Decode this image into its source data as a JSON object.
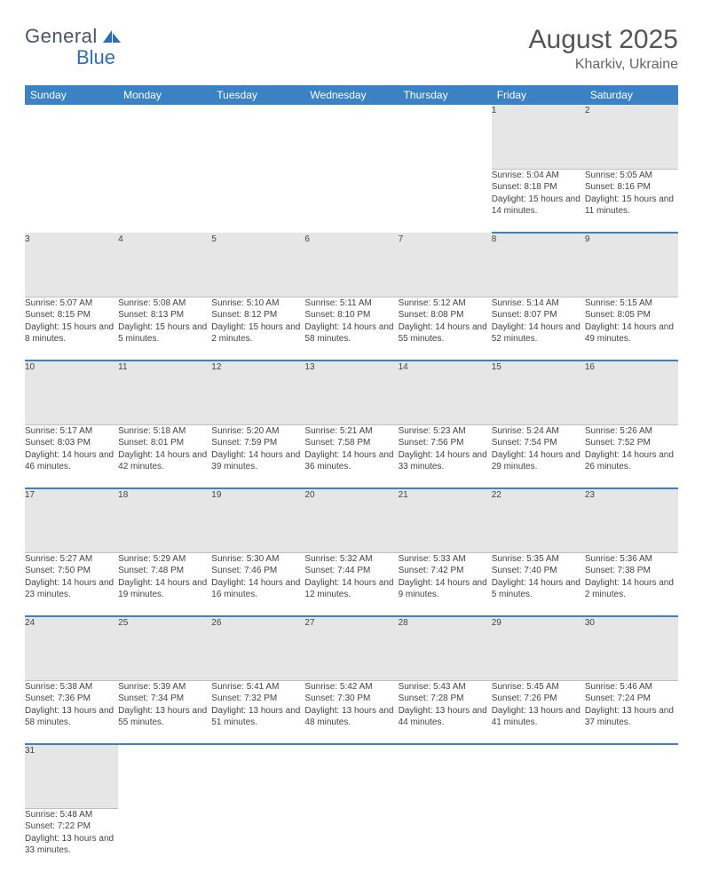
{
  "logo": {
    "text1": "General",
    "text2": "Blue"
  },
  "title": "August 2025",
  "location": "Kharkiv, Ukraine",
  "colors": {
    "header_bg": "#3a82c4",
    "header_text": "#ffffff",
    "daynum_bg": "#e6e6e6",
    "row_border": "#3a82c4",
    "body_text": "#444444",
    "title_text": "#555555"
  },
  "day_headers": [
    "Sunday",
    "Monday",
    "Tuesday",
    "Wednesday",
    "Thursday",
    "Friday",
    "Saturday"
  ],
  "weeks": [
    {
      "nums": [
        "",
        "",
        "",
        "",
        "",
        "1",
        "2"
      ],
      "cells": [
        null,
        null,
        null,
        null,
        null,
        {
          "sunrise": "Sunrise: 5:04 AM",
          "sunset": "Sunset: 8:18 PM",
          "daylight": "Daylight: 15 hours and 14 minutes."
        },
        {
          "sunrise": "Sunrise: 5:05 AM",
          "sunset": "Sunset: 8:16 PM",
          "daylight": "Daylight: 15 hours and 11 minutes."
        }
      ]
    },
    {
      "nums": [
        "3",
        "4",
        "5",
        "6",
        "7",
        "8",
        "9"
      ],
      "cells": [
        {
          "sunrise": "Sunrise: 5:07 AM",
          "sunset": "Sunset: 8:15 PM",
          "daylight": "Daylight: 15 hours and 8 minutes."
        },
        {
          "sunrise": "Sunrise: 5:08 AM",
          "sunset": "Sunset: 8:13 PM",
          "daylight": "Daylight: 15 hours and 5 minutes."
        },
        {
          "sunrise": "Sunrise: 5:10 AM",
          "sunset": "Sunset: 8:12 PM",
          "daylight": "Daylight: 15 hours and 2 minutes."
        },
        {
          "sunrise": "Sunrise: 5:11 AM",
          "sunset": "Sunset: 8:10 PM",
          "daylight": "Daylight: 14 hours and 58 minutes."
        },
        {
          "sunrise": "Sunrise: 5:12 AM",
          "sunset": "Sunset: 8:08 PM",
          "daylight": "Daylight: 14 hours and 55 minutes."
        },
        {
          "sunrise": "Sunrise: 5:14 AM",
          "sunset": "Sunset: 8:07 PM",
          "daylight": "Daylight: 14 hours and 52 minutes."
        },
        {
          "sunrise": "Sunrise: 5:15 AM",
          "sunset": "Sunset: 8:05 PM",
          "daylight": "Daylight: 14 hours and 49 minutes."
        }
      ]
    },
    {
      "nums": [
        "10",
        "11",
        "12",
        "13",
        "14",
        "15",
        "16"
      ],
      "cells": [
        {
          "sunrise": "Sunrise: 5:17 AM",
          "sunset": "Sunset: 8:03 PM",
          "daylight": "Daylight: 14 hours and 46 minutes."
        },
        {
          "sunrise": "Sunrise: 5:18 AM",
          "sunset": "Sunset: 8:01 PM",
          "daylight": "Daylight: 14 hours and 42 minutes."
        },
        {
          "sunrise": "Sunrise: 5:20 AM",
          "sunset": "Sunset: 7:59 PM",
          "daylight": "Daylight: 14 hours and 39 minutes."
        },
        {
          "sunrise": "Sunrise: 5:21 AM",
          "sunset": "Sunset: 7:58 PM",
          "daylight": "Daylight: 14 hours and 36 minutes."
        },
        {
          "sunrise": "Sunrise: 5:23 AM",
          "sunset": "Sunset: 7:56 PM",
          "daylight": "Daylight: 14 hours and 33 minutes."
        },
        {
          "sunrise": "Sunrise: 5:24 AM",
          "sunset": "Sunset: 7:54 PM",
          "daylight": "Daylight: 14 hours and 29 minutes."
        },
        {
          "sunrise": "Sunrise: 5:26 AM",
          "sunset": "Sunset: 7:52 PM",
          "daylight": "Daylight: 14 hours and 26 minutes."
        }
      ]
    },
    {
      "nums": [
        "17",
        "18",
        "19",
        "20",
        "21",
        "22",
        "23"
      ],
      "cells": [
        {
          "sunrise": "Sunrise: 5:27 AM",
          "sunset": "Sunset: 7:50 PM",
          "daylight": "Daylight: 14 hours and 23 minutes."
        },
        {
          "sunrise": "Sunrise: 5:29 AM",
          "sunset": "Sunset: 7:48 PM",
          "daylight": "Daylight: 14 hours and 19 minutes."
        },
        {
          "sunrise": "Sunrise: 5:30 AM",
          "sunset": "Sunset: 7:46 PM",
          "daylight": "Daylight: 14 hours and 16 minutes."
        },
        {
          "sunrise": "Sunrise: 5:32 AM",
          "sunset": "Sunset: 7:44 PM",
          "daylight": "Daylight: 14 hours and 12 minutes."
        },
        {
          "sunrise": "Sunrise: 5:33 AM",
          "sunset": "Sunset: 7:42 PM",
          "daylight": "Daylight: 14 hours and 9 minutes."
        },
        {
          "sunrise": "Sunrise: 5:35 AM",
          "sunset": "Sunset: 7:40 PM",
          "daylight": "Daylight: 14 hours and 5 minutes."
        },
        {
          "sunrise": "Sunrise: 5:36 AM",
          "sunset": "Sunset: 7:38 PM",
          "daylight": "Daylight: 14 hours and 2 minutes."
        }
      ]
    },
    {
      "nums": [
        "24",
        "25",
        "26",
        "27",
        "28",
        "29",
        "30"
      ],
      "cells": [
        {
          "sunrise": "Sunrise: 5:38 AM",
          "sunset": "Sunset: 7:36 PM",
          "daylight": "Daylight: 13 hours and 58 minutes."
        },
        {
          "sunrise": "Sunrise: 5:39 AM",
          "sunset": "Sunset: 7:34 PM",
          "daylight": "Daylight: 13 hours and 55 minutes."
        },
        {
          "sunrise": "Sunrise: 5:41 AM",
          "sunset": "Sunset: 7:32 PM",
          "daylight": "Daylight: 13 hours and 51 minutes."
        },
        {
          "sunrise": "Sunrise: 5:42 AM",
          "sunset": "Sunset: 7:30 PM",
          "daylight": "Daylight: 13 hours and 48 minutes."
        },
        {
          "sunrise": "Sunrise: 5:43 AM",
          "sunset": "Sunset: 7:28 PM",
          "daylight": "Daylight: 13 hours and 44 minutes."
        },
        {
          "sunrise": "Sunrise: 5:45 AM",
          "sunset": "Sunset: 7:26 PM",
          "daylight": "Daylight: 13 hours and 41 minutes."
        },
        {
          "sunrise": "Sunrise: 5:46 AM",
          "sunset": "Sunset: 7:24 PM",
          "daylight": "Daylight: 13 hours and 37 minutes."
        }
      ]
    },
    {
      "nums": [
        "31",
        "",
        "",
        "",
        "",
        "",
        ""
      ],
      "cells": [
        {
          "sunrise": "Sunrise: 5:48 AM",
          "sunset": "Sunset: 7:22 PM",
          "daylight": "Daylight: 13 hours and 33 minutes."
        },
        null,
        null,
        null,
        null,
        null,
        null
      ]
    }
  ]
}
